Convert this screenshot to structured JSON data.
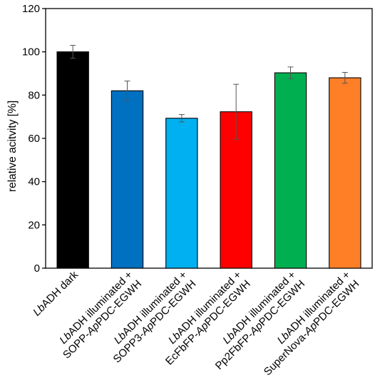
{
  "chart_data": {
    "type": "bar",
    "ylabel": "relative acitvity   [%]",
    "xlabel": "",
    "ylim": [
      0,
      120
    ],
    "yticks": [
      0,
      20,
      40,
      60,
      80,
      100,
      120
    ],
    "grid": false,
    "legend": "none",
    "categories": [
      {
        "line1": [
          {
            "t": "Lb",
            "i": true
          },
          {
            "t": "ADH dark",
            "i": false
          }
        ],
        "line2": []
      },
      {
        "line1": [
          {
            "t": "Lb",
            "i": true
          },
          {
            "t": "ADH illuminated +",
            "i": false
          }
        ],
        "line2": [
          {
            "t": "SOPP-",
            "i": false
          },
          {
            "t": "Ap",
            "i": true
          },
          {
            "t": "PDC-EGWH",
            "i": false
          }
        ]
      },
      {
        "line1": [
          {
            "t": "Lb",
            "i": true
          },
          {
            "t": "ADH illuminated +",
            "i": false
          }
        ],
        "line2": [
          {
            "t": "SOPP3-",
            "i": false
          },
          {
            "t": "Ap",
            "i": true
          },
          {
            "t": "PDC-EGWH",
            "i": false
          }
        ]
      },
      {
        "line1": [
          {
            "t": "Lb",
            "i": true
          },
          {
            "t": "ADH illuminated +",
            "i": false
          }
        ],
        "line2": [
          {
            "t": "EcFbFP-",
            "i": false
          },
          {
            "t": "Ap",
            "i": true
          },
          {
            "t": "PDC-EGWH",
            "i": false
          }
        ]
      },
      {
        "line1": [
          {
            "t": "Lb",
            "i": true
          },
          {
            "t": "ADH illuminated +",
            "i": false
          }
        ],
        "line2": [
          {
            "t": "Pp2FbFP-",
            "i": false
          },
          {
            "t": "Ap",
            "i": true
          },
          {
            "t": "PDC-EGWH",
            "i": false
          }
        ]
      },
      {
        "line1": [
          {
            "t": "Lb",
            "i": true
          },
          {
            "t": "ADH illuminated +",
            "i": false
          }
        ],
        "line2": [
          {
            "t": "SuperNova-",
            "i": false
          },
          {
            "t": "Ap",
            "i": true
          },
          {
            "t": "PDC-EGWH",
            "i": false
          }
        ]
      }
    ],
    "values": [
      100,
      82,
      69.3,
      72.3,
      90.3,
      88
    ],
    "errors": [
      3,
      4.5,
      1.7,
      12.7,
      2.7,
      2.5
    ],
    "colors": [
      "#000000",
      "#0070c0",
      "#00b0f0",
      "#ff0000",
      "#00b050",
      "#ff7f27"
    ]
  }
}
